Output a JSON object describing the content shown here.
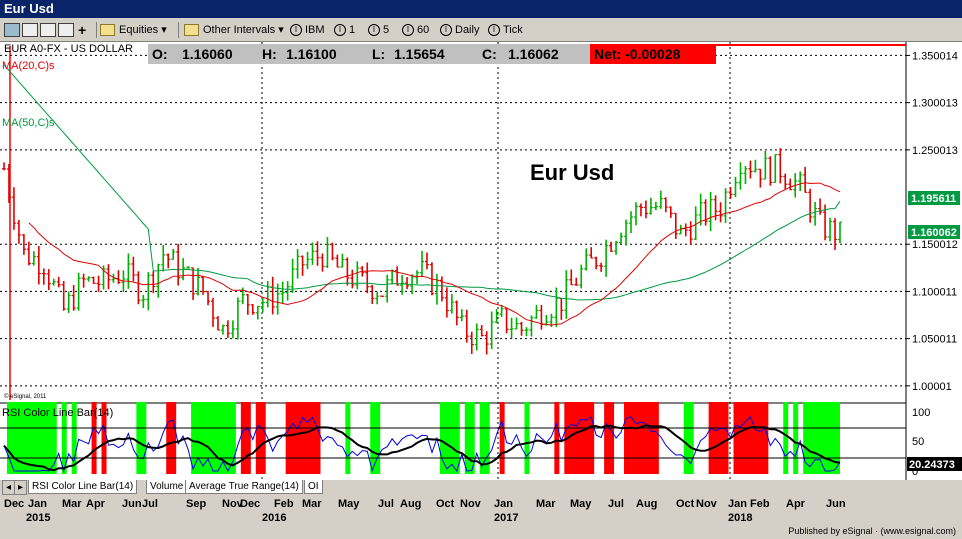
{
  "window": {
    "title": "Eur Usd"
  },
  "toolbar": {
    "symbol_type": "Equities",
    "intervals": "Other Intervals",
    "ibm": "IBM",
    "i1": "1",
    "i5": "5",
    "i60": "60",
    "daily": "Daily",
    "tick": "Tick"
  },
  "quote": {
    "symbol_label": "EUR A0-FX - US DOLLAR",
    "open_label": "O:",
    "open": "1.16060",
    "high_label": "H:",
    "high": "1.16100",
    "low_label": "L:",
    "low": "1.15654",
    "close_label": "C:",
    "close": "1.16062",
    "net": "Net: -0.00028"
  },
  "indicators": {
    "ma20": "MA(20,C)s",
    "ma50": "MA(50,C)s",
    "copyright": "© eSignal, 2011",
    "rsi_title": "RSI Color Line Bar(14)",
    "rsi_value": "20.24373"
  },
  "chart_annotation": "Eur Usd",
  "price_axis": {
    "ticks": [
      "1.350014",
      "1.300013",
      "1.250013",
      "1.195611",
      "1.160062",
      "1.150012",
      "1.100011",
      "1.050011",
      "1.00001"
    ],
    "ma_badge": "1.195611",
    "last_badge": "1.160062"
  },
  "rsi_axis": {
    "ticks": [
      "100",
      "50",
      "0"
    ]
  },
  "time_axis": {
    "months": [
      "Dec",
      "Jan",
      "Mar",
      "Apr",
      "Jun",
      "Jul",
      "Sep",
      "Nov",
      "Dec",
      "Feb",
      "Mar",
      "May",
      "Jul",
      "Aug",
      "Oct",
      "Nov",
      "Jan",
      "Mar",
      "May",
      "Jul",
      "Aug",
      "Oct",
      "Nov",
      "Jan",
      "Feb",
      "Apr",
      "Jun"
    ],
    "years": [
      "2015",
      "2016",
      "2017",
      "2018"
    ]
  },
  "tabs": [
    "RSI Color Line Bar(14)",
    "Volume",
    "Average True Range(14)",
    "OI"
  ],
  "footer": "Published by eSignal · (www.esignal.com)",
  "colors": {
    "up": "#00b000",
    "down": "#e00000",
    "ma20": "#e00000",
    "ma50": "#009a40",
    "rsi_line": "#0000e0",
    "rsi_high": "#ff0000",
    "rsi_low": "#00ff00",
    "net_bg": "#ff0000"
  },
  "chart_data": {
    "type": "ohlc",
    "interval": "weekly",
    "x": [
      "2014-12",
      "2015-01",
      "2015-02",
      "2015-03",
      "2015-04",
      "2015-05",
      "2015-06",
      "2015-07",
      "2015-08",
      "2015-09",
      "2015-10",
      "2015-11",
      "2015-12",
      "2016-01",
      "2016-02",
      "2016-03",
      "2016-04",
      "2016-05",
      "2016-06",
      "2016-07",
      "2016-08",
      "2016-09",
      "2016-10",
      "2016-11",
      "2016-12",
      "2017-01",
      "2017-02",
      "2017-03",
      "2017-04",
      "2017-05",
      "2017-06",
      "2017-07",
      "2017-08",
      "2017-09",
      "2017-10",
      "2017-11",
      "2017-12",
      "2018-01",
      "2018-02",
      "2018-03",
      "2018-04",
      "2018-05",
      "2018-06"
    ],
    "close": [
      1.23,
      1.14,
      1.13,
      1.08,
      1.11,
      1.11,
      1.12,
      1.1,
      1.14,
      1.12,
      1.1,
      1.06,
      1.09,
      1.09,
      1.1,
      1.13,
      1.14,
      1.12,
      1.11,
      1.1,
      1.12,
      1.12,
      1.1,
      1.06,
      1.05,
      1.07,
      1.06,
      1.08,
      1.09,
      1.12,
      1.14,
      1.17,
      1.19,
      1.19,
      1.16,
      1.18,
      1.19,
      1.24,
      1.23,
      1.23,
      1.21,
      1.17,
      1.16
    ],
    "ma20_end": 1.2055,
    "ma50_end": 1.195611,
    "rsi_end": 20.24373,
    "ylim": [
      0.985,
      1.36
    ],
    "rsi_ylim": [
      0,
      100
    ]
  }
}
